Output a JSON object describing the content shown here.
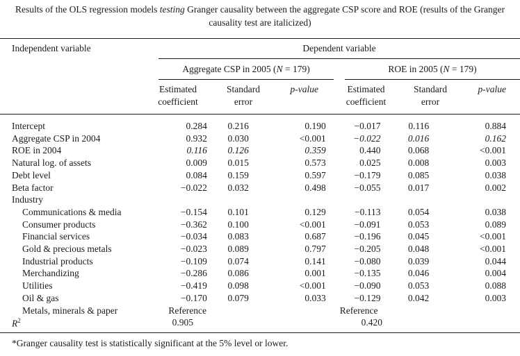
{
  "caption": {
    "prefix": "Results of the OLS regression models ",
    "italic": "testing",
    "suffix": " Granger causality between the aggregate CSP score and ROE (results of the Granger causality test are italicized)"
  },
  "header": {
    "independent_variable": "Independent variable",
    "dependent_variable": "Dependent variable",
    "model1": {
      "prefix": "Aggregate CSP in 2005 (",
      "n_italic": "N",
      "suffix": " = 179)"
    },
    "model2": {
      "prefix": "ROE in 2005 (",
      "n_italic": "N",
      "suffix": " = 179)"
    },
    "col_est_line1": "Estimated",
    "col_est_line2": "coefficient",
    "col_se_line1": "Standard",
    "col_se_line2": "error",
    "col_p": "p-value"
  },
  "rows": [
    {
      "label": "Intercept",
      "indent": false,
      "v": [
        "0.284",
        "0.216",
        "0.190",
        "−0.017",
        "0.116",
        "0.884"
      ],
      "it": [
        false,
        false,
        false,
        false,
        false,
        false
      ]
    },
    {
      "label": "Aggregate CSP in 2004",
      "indent": false,
      "v": [
        "0.932",
        "0.030",
        "<0.001",
        "−0.022",
        "0.016",
        "0.162"
      ],
      "it": [
        false,
        false,
        false,
        true,
        true,
        true
      ]
    },
    {
      "label": "ROE in 2004",
      "indent": false,
      "v": [
        "0.116",
        "0.126",
        "0.359",
        "0.440",
        "0.068",
        "<0.001"
      ],
      "it": [
        true,
        true,
        true,
        false,
        false,
        false
      ]
    },
    {
      "label": "Natural log. of assets",
      "indent": false,
      "v": [
        "0.009",
        "0.015",
        "0.573",
        "0.025",
        "0.008",
        "0.003"
      ],
      "it": [
        false,
        false,
        false,
        false,
        false,
        false
      ]
    },
    {
      "label": "Debt level",
      "indent": false,
      "v": [
        "0.084",
        "0.159",
        "0.597",
        "−0.179",
        "0.085",
        "0.038"
      ],
      "it": [
        false,
        false,
        false,
        false,
        false,
        false
      ]
    },
    {
      "label": "Beta factor",
      "indent": false,
      "v": [
        "−0.022",
        "0.032",
        "0.498",
        "−0.055",
        "0.017",
        "0.002"
      ],
      "it": [
        false,
        false,
        false,
        false,
        false,
        false
      ]
    },
    {
      "label": "Industry",
      "indent": false,
      "v": [
        "",
        "",
        "",
        "",
        "",
        ""
      ],
      "it": [
        false,
        false,
        false,
        false,
        false,
        false
      ]
    },
    {
      "label": "Communications & media",
      "indent": true,
      "v": [
        "−0.154",
        "0.101",
        "0.129",
        "−0.113",
        "0.054",
        "0.038"
      ],
      "it": [
        false,
        false,
        false,
        false,
        false,
        false
      ]
    },
    {
      "label": "Consumer products",
      "indent": true,
      "v": [
        "−0.362",
        "0.100",
        "<0.001",
        "−0.091",
        "0.053",
        "0.089"
      ],
      "it": [
        false,
        false,
        false,
        false,
        false,
        false
      ]
    },
    {
      "label": "Financial services",
      "indent": true,
      "v": [
        "−0.034",
        "0.083",
        "0.687",
        "−0.196",
        "0.045",
        "<0.001"
      ],
      "it": [
        false,
        false,
        false,
        false,
        false,
        false
      ]
    },
    {
      "label": "Gold & precious metals",
      "indent": true,
      "v": [
        "−0.023",
        "0.089",
        "0.797",
        "−0.205",
        "0.048",
        "<0.001"
      ],
      "it": [
        false,
        false,
        false,
        false,
        false,
        false
      ]
    },
    {
      "label": "Industrial products",
      "indent": true,
      "v": [
        "−0.109",
        "0.074",
        "0.141",
        "−0.080",
        "0.039",
        "0.044"
      ],
      "it": [
        false,
        false,
        false,
        false,
        false,
        false
      ]
    },
    {
      "label": "Merchandizing",
      "indent": true,
      "v": [
        "−0.286",
        "0.086",
        "0.001",
        "−0.135",
        "0.046",
        "0.004"
      ],
      "it": [
        false,
        false,
        false,
        false,
        false,
        false
      ]
    },
    {
      "label": "Utilities",
      "indent": true,
      "v": [
        "−0.419",
        "0.098",
        "<0.001",
        "−0.090",
        "0.053",
        "0.088"
      ],
      "it": [
        false,
        false,
        false,
        false,
        false,
        false
      ]
    },
    {
      "label": "Oil & gas",
      "indent": true,
      "v": [
        "−0.170",
        "0.079",
        "0.033",
        "−0.129",
        "0.042",
        "0.003"
      ],
      "it": [
        false,
        false,
        false,
        false,
        false,
        false
      ]
    },
    {
      "label": "Metals, minerals & paper",
      "indent": true,
      "v": [
        "Reference",
        "",
        "",
        "Reference",
        "",
        ""
      ],
      "it": [
        false,
        false,
        false,
        false,
        false,
        false
      ]
    }
  ],
  "r_squared": {
    "label_r": "R",
    "label_sup": "2",
    "model1": "0.905",
    "model2": "0.420"
  },
  "footnote": "*Granger causality test is statistically significant at the 5% level or lower."
}
